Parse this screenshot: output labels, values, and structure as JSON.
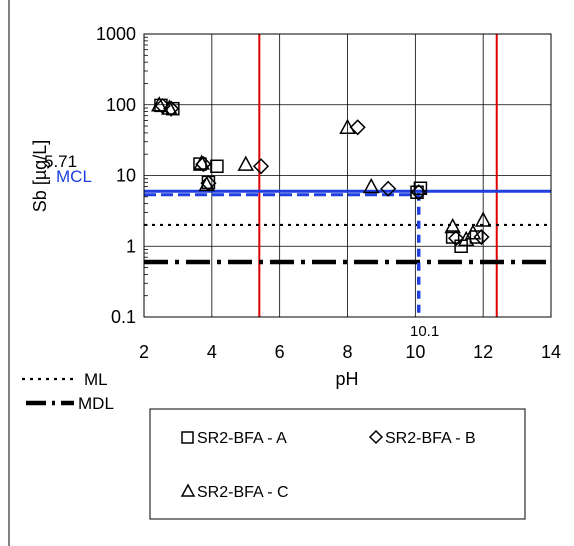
{
  "chart_data": {
    "type": "scatter",
    "xlabel": "pH",
    "ylabel": "Sb [µg/L]",
    "xlim": [
      2,
      14
    ],
    "ylim": [
      0.1,
      1000
    ],
    "y_scale": "log",
    "x_ticks": [
      "2",
      "4",
      "6",
      "8",
      "10",
      "12",
      "14"
    ],
    "y_ticks": [
      "0.1",
      "1",
      "10",
      "100",
      "1000"
    ],
    "grid": true,
    "series": [
      {
        "name": "SR2-BFA - A",
        "marker": "square",
        "points": [
          [
            2.5,
            98
          ],
          [
            2.85,
            88
          ],
          [
            3.65,
            14.5
          ],
          [
            3.9,
            8.0
          ],
          [
            4.15,
            13.5
          ],
          [
            10.05,
            5.8
          ],
          [
            10.15,
            6.6
          ],
          [
            11.1,
            1.35
          ],
          [
            11.35,
            1.0
          ],
          [
            11.8,
            1.35
          ]
        ]
      },
      {
        "name": "SR2-BFA - B",
        "marker": "diamond",
        "points": [
          [
            2.55,
            96
          ],
          [
            2.8,
            88
          ],
          [
            3.75,
            14.5
          ],
          [
            3.9,
            7.8
          ],
          [
            5.45,
            13.5
          ],
          [
            8.3,
            48
          ],
          [
            9.2,
            6.5
          ],
          [
            10.1,
            5.8
          ],
          [
            11.2,
            1.3
          ],
          [
            11.95,
            1.35
          ]
        ]
      },
      {
        "name": "SR2-BFA - C",
        "marker": "triangle",
        "points": [
          [
            2.45,
            100
          ],
          [
            2.75,
            90
          ],
          [
            3.7,
            15
          ],
          [
            3.85,
            7.5
          ],
          [
            5.0,
            14.5
          ],
          [
            8.0,
            48
          ],
          [
            8.7,
            7.0
          ],
          [
            11.1,
            1.9
          ],
          [
            11.5,
            1.25
          ],
          [
            11.7,
            1.55
          ],
          [
            12.0,
            2.35
          ]
        ]
      }
    ],
    "reference_lines": {
      "ml": {
        "label": "ML",
        "y": 2.0,
        "style": "dotted",
        "color": "#000000"
      },
      "mdl": {
        "label": "MDL",
        "y": 0.6,
        "style": "dash-dot",
        "color": "#000000"
      },
      "mcl": {
        "label": "MCL",
        "value_label": "5.71",
        "y": 5.71,
        "style": "solid-dashed",
        "color": "#1f3fe0"
      },
      "ph_low": {
        "x": 5.4,
        "color": "#e00000"
      },
      "ph_high": {
        "x": 12.4,
        "color": "#e00000"
      },
      "ph_mark": {
        "x": 10.1,
        "label": "10.1",
        "color": "#1f3fe0"
      }
    },
    "legend_lines": [
      "ML",
      "MDL"
    ],
    "legend_box": [
      "SR2-BFA - A",
      "SR2-BFA - B",
      "SR2-BFA - C"
    ]
  }
}
